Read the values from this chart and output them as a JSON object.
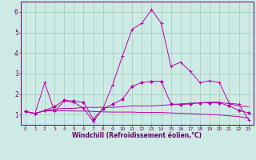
{
  "xlabel": "Windchill (Refroidissement éolien,°C)",
  "bg_color": "#ceeae4",
  "line_color": "#bb00aa",
  "xlim": [
    -0.5,
    23.5
  ],
  "ylim": [
    0.5,
    6.5
  ],
  "yticks": [
    1,
    2,
    3,
    4,
    5,
    6
  ],
  "xticks": [
    0,
    1,
    2,
    3,
    4,
    5,
    6,
    7,
    8,
    9,
    10,
    11,
    12,
    13,
    14,
    15,
    16,
    17,
    18,
    19,
    20,
    21,
    22,
    23
  ],
  "series1_x": [
    0,
    1,
    2,
    3,
    4,
    5,
    6,
    7,
    8,
    9,
    10,
    11,
    12,
    13,
    14,
    15,
    16,
    17,
    18,
    19,
    20,
    21,
    22,
    23
  ],
  "series1_y": [
    1.15,
    1.05,
    2.55,
    1.15,
    1.65,
    1.6,
    1.3,
    0.65,
    1.3,
    2.45,
    3.85,
    5.15,
    5.45,
    6.1,
    5.45,
    3.35,
    3.55,
    3.1,
    2.55,
    2.65,
    2.55,
    1.55,
    1.5,
    0.75
  ],
  "series2_x": [
    0,
    1,
    2,
    3,
    4,
    5,
    6,
    7,
    8,
    9,
    10,
    11,
    12,
    13,
    14,
    15,
    16,
    17,
    18,
    19,
    20,
    21,
    22,
    23
  ],
  "series2_y": [
    1.15,
    1.05,
    1.2,
    1.25,
    1.3,
    1.3,
    1.35,
    1.35,
    1.35,
    1.35,
    1.38,
    1.42,
    1.42,
    1.42,
    1.45,
    1.48,
    1.52,
    1.55,
    1.57,
    1.6,
    1.6,
    1.52,
    1.42,
    1.38
  ],
  "series3_x": [
    0,
    1,
    2,
    3,
    4,
    5,
    6,
    7,
    8,
    9,
    10,
    11,
    12,
    13,
    14,
    15,
    16,
    17,
    18,
    19,
    20,
    21,
    22,
    23
  ],
  "series3_y": [
    1.15,
    1.05,
    1.18,
    1.18,
    1.18,
    1.17,
    1.17,
    1.15,
    1.13,
    1.12,
    1.12,
    1.12,
    1.1,
    1.1,
    1.1,
    1.08,
    1.06,
    1.04,
    1.02,
    1.0,
    0.98,
    0.94,
    0.9,
    0.82
  ],
  "series4_x": [
    0,
    1,
    2,
    3,
    4,
    5,
    6,
    7,
    8,
    9,
    10,
    11,
    12,
    13,
    14,
    15,
    16,
    17,
    18,
    19,
    20,
    21,
    22,
    23
  ],
  "series4_y": [
    1.15,
    1.05,
    1.2,
    1.38,
    1.7,
    1.65,
    1.6,
    0.78,
    1.28,
    1.5,
    1.75,
    2.38,
    2.55,
    2.62,
    2.62,
    1.52,
    1.48,
    1.52,
    1.57,
    1.57,
    1.57,
    1.42,
    1.2,
    1.08
  ]
}
